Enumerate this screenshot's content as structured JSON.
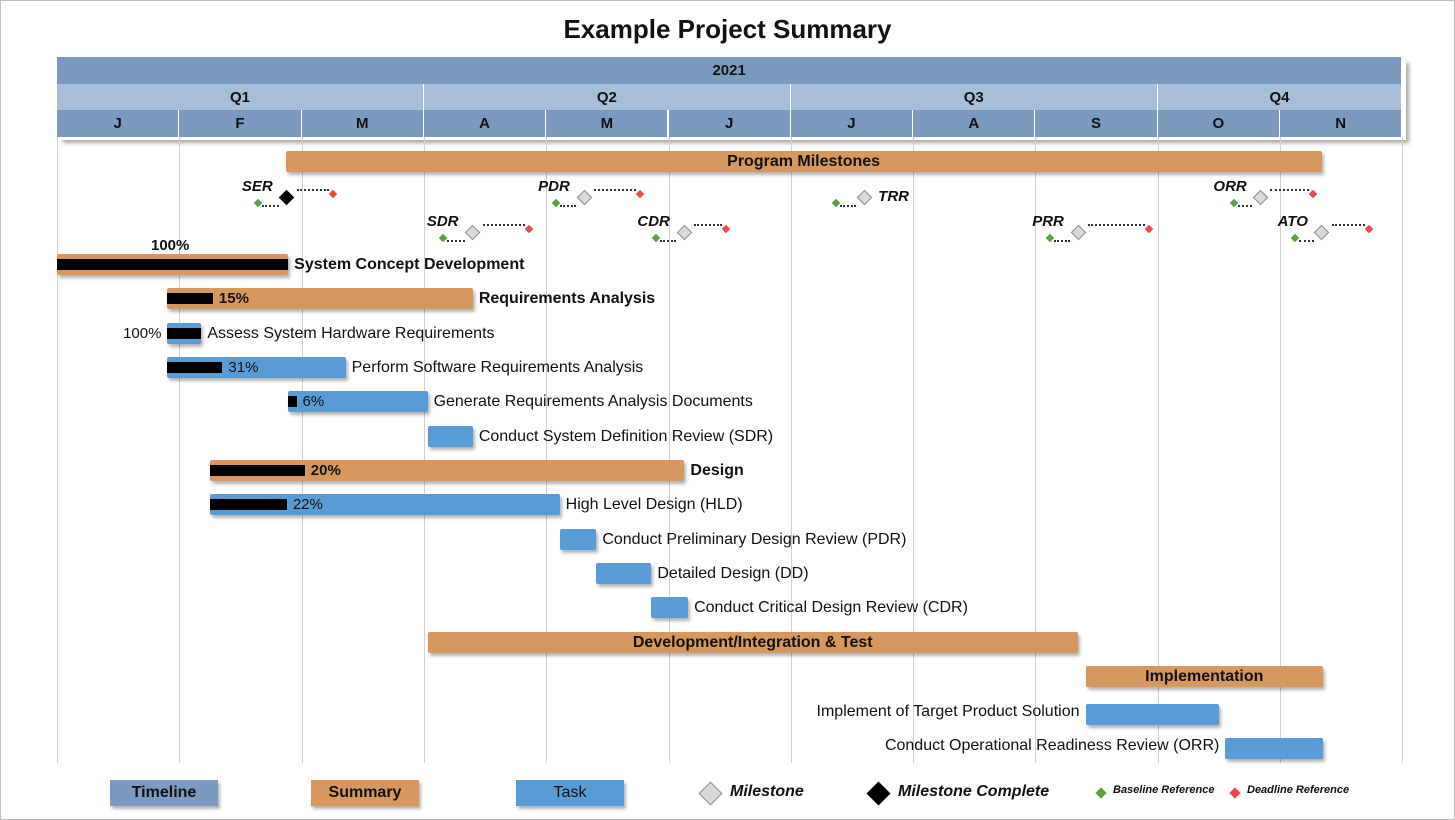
{
  "chart_data": {
    "type": "gantt",
    "title": "Example Project Summary",
    "timeline": {
      "year": "2021",
      "quarters": [
        "Q1",
        "Q2",
        "Q3",
        "Q4"
      ],
      "months": [
        "J",
        "F",
        "M",
        "A",
        "M",
        "J",
        "J",
        "A",
        "S",
        "O",
        "N"
      ]
    },
    "tasks": [
      {
        "name": "Program Milestones",
        "kind": "summary",
        "start": 1.87,
        "end": 10.34,
        "percent": null,
        "label_pos": "inside"
      },
      {
        "name": "System Concept Development",
        "kind": "summary",
        "start": 0.0,
        "end": 1.89,
        "percent": 100,
        "pct_label": "100%",
        "label_pos": "right",
        "pct_pos": "above"
      },
      {
        "name": "Requirements Analysis",
        "kind": "summary",
        "start": 0.9,
        "end": 3.4,
        "percent": 15,
        "pct_label": "15%",
        "label_pos": "right",
        "pct_pos": "inside"
      },
      {
        "name": "Assess System Hardware Requirements",
        "kind": "task",
        "start": 0.9,
        "end": 1.18,
        "percent": 100,
        "pct_label": "100%",
        "label_pos": "right",
        "pct_pos": "left"
      },
      {
        "name": "Perform Software Requirements Analysis",
        "kind": "task",
        "start": 0.9,
        "end": 2.36,
        "percent": 31,
        "pct_label": "31%",
        "label_pos": "right",
        "pct_pos": "inside"
      },
      {
        "name": "Generate Requirements Analysis Documents",
        "kind": "task",
        "start": 1.89,
        "end": 3.03,
        "percent": 6,
        "pct_label": "6%",
        "label_pos": "right",
        "pct_pos": "inside"
      },
      {
        "name": "Conduct System Definition Review (SDR)",
        "kind": "task",
        "start": 3.03,
        "end": 3.4,
        "percent": null,
        "label_pos": "right"
      },
      {
        "name": "Design",
        "kind": "summary",
        "start": 1.25,
        "end": 5.13,
        "percent": 20,
        "pct_label": "20%",
        "label_pos": "right",
        "pct_pos": "inside"
      },
      {
        "name": "High Level Design (HLD)",
        "kind": "task",
        "start": 1.25,
        "end": 4.11,
        "percent": 22,
        "pct_label": "22%",
        "label_pos": "right",
        "pct_pos": "inside"
      },
      {
        "name": "Conduct Preliminary Design Review (PDR)",
        "kind": "task",
        "start": 4.11,
        "end": 4.41,
        "percent": null,
        "label_pos": "right"
      },
      {
        "name": "Detailed Design (DD)",
        "kind": "task",
        "start": 4.41,
        "end": 4.86,
        "percent": null,
        "label_pos": "right"
      },
      {
        "name": "Conduct Critical Design Review (CDR)",
        "kind": "task",
        "start": 4.86,
        "end": 5.16,
        "percent": null,
        "label_pos": "right"
      },
      {
        "name": "Development/Integration & Test",
        "kind": "summary",
        "start": 3.03,
        "end": 8.35,
        "percent": null,
        "label_pos": "inside"
      },
      {
        "name": "Implementation",
        "kind": "summary",
        "start": 8.41,
        "end": 10.35,
        "percent": null,
        "label_pos": "inside"
      },
      {
        "name": "Implement of Target Product Solution",
        "kind": "task",
        "start": 8.41,
        "end": 9.5,
        "percent": null,
        "label_pos": "left"
      },
      {
        "name": "Conduct Operational Readiness Review (ORR)",
        "kind": "task",
        "start": 9.55,
        "end": 10.35,
        "percent": null,
        "label_pos": "left"
      }
    ],
    "milestones": [
      {
        "name": "SER",
        "date": 1.88,
        "baseline": 1.64,
        "deadline": 2.26,
        "complete": true,
        "tier": 0,
        "label_pos": "left"
      },
      {
        "name": "PDR",
        "date": 4.31,
        "baseline": 4.08,
        "deadline": 4.77,
        "complete": false,
        "tier": 0,
        "label_pos": "left"
      },
      {
        "name": "TRR",
        "date": 6.6,
        "baseline": 6.37,
        "deadline": null,
        "complete": false,
        "tier": 0,
        "label_pos": "right"
      },
      {
        "name": "ORR",
        "date": 9.84,
        "baseline": 9.62,
        "deadline": 10.27,
        "complete": false,
        "tier": 0,
        "label_pos": "left"
      },
      {
        "name": "SDR",
        "date": 3.4,
        "baseline": 3.16,
        "deadline": 3.86,
        "complete": false,
        "tier": 1,
        "label_pos": "left"
      },
      {
        "name": "CDR",
        "date": 5.13,
        "baseline": 4.9,
        "deadline": 5.47,
        "complete": false,
        "tier": 1,
        "label_pos": "left"
      },
      {
        "name": "PRR",
        "date": 8.35,
        "baseline": 8.12,
        "deadline": 8.93,
        "complete": false,
        "tier": 1,
        "label_pos": "left"
      },
      {
        "name": "ATO",
        "date": 10.34,
        "baseline": 10.12,
        "deadline": 10.73,
        "complete": false,
        "tier": 1,
        "label_pos": "left"
      }
    ],
    "legend": [
      {
        "key": "timeline",
        "label": "Timeline",
        "kind": "box",
        "color": "#7c9ac0"
      },
      {
        "key": "summary",
        "label": "Summary",
        "kind": "box",
        "color": "#d6985e"
      },
      {
        "key": "task",
        "label": "Task",
        "kind": "box",
        "color": "#5b9bd5"
      },
      {
        "key": "milestone",
        "label": "Milestone",
        "kind": "diamond-open"
      },
      {
        "key": "milestone_complete",
        "label": "Milestone Complete",
        "kind": "diamond-done"
      },
      {
        "key": "baseline",
        "label": "Baseline Reference",
        "kind": "mini",
        "color": "#5aa33c"
      },
      {
        "key": "deadline",
        "label": "Deadline Reference",
        "kind": "mini",
        "color": "#f04848"
      }
    ]
  }
}
